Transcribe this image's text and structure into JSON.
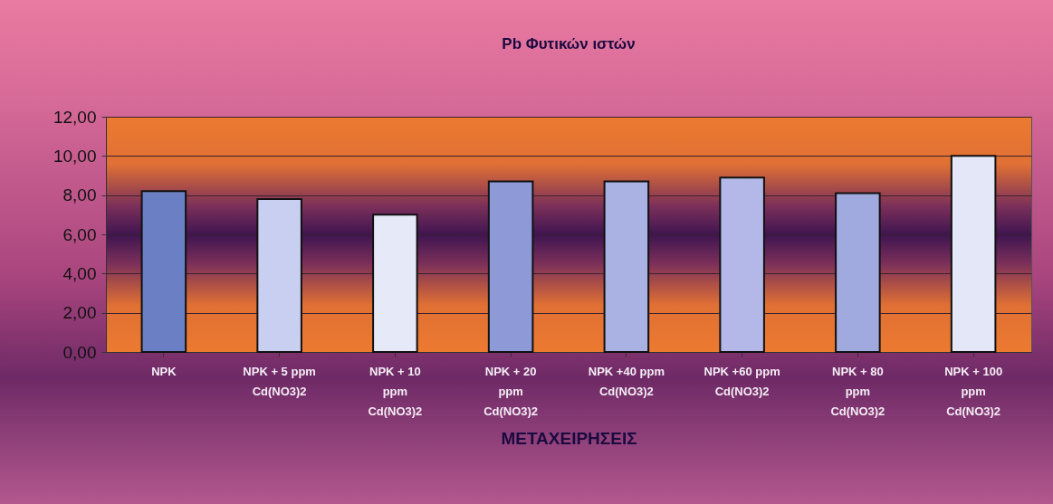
{
  "chart_data": {
    "type": "bar",
    "title": "Pb Φυτικών ιστών",
    "xlabel": "ΜΕΤΑΧΕΙΡΗΣΕΙΣ",
    "categories": [
      "NPK",
      "NPK + 5 ppm Cd(NO3)2",
      "NPK + 10 ppm Cd(NO3)2",
      "NPK + 20 ppm Cd(NO3)2",
      "NPK +40 ppm Cd(NO3)2",
      "NPK +60 ppm Cd(NO3)2",
      "NPK + 80 ppm Cd(NO3)2",
      "NPK + 100 ppm Cd(NO3)2"
    ],
    "values": [
      8.2,
      7.8,
      7.0,
      8.7,
      8.7,
      8.9,
      8.1,
      10.0
    ],
    "colors": [
      "#6b7fc4",
      "#c9cff0",
      "#e6e9f8",
      "#8e9ad8",
      "#a9b2e2",
      "#b3b8e8",
      "#a0aade",
      "#e4e7f7"
    ],
    "ylim": [
      0,
      12
    ],
    "yticks": [
      {
        "value": 0,
        "label": "0,00"
      },
      {
        "value": 2,
        "label": "2,00"
      },
      {
        "value": 4,
        "label": "4,00"
      },
      {
        "value": 6,
        "label": "6,00"
      },
      {
        "value": 8,
        "label": "8,00"
      },
      {
        "value": 10,
        "label": "10,00"
      },
      {
        "value": 12,
        "label": "12,00"
      }
    ],
    "grid": "y"
  }
}
